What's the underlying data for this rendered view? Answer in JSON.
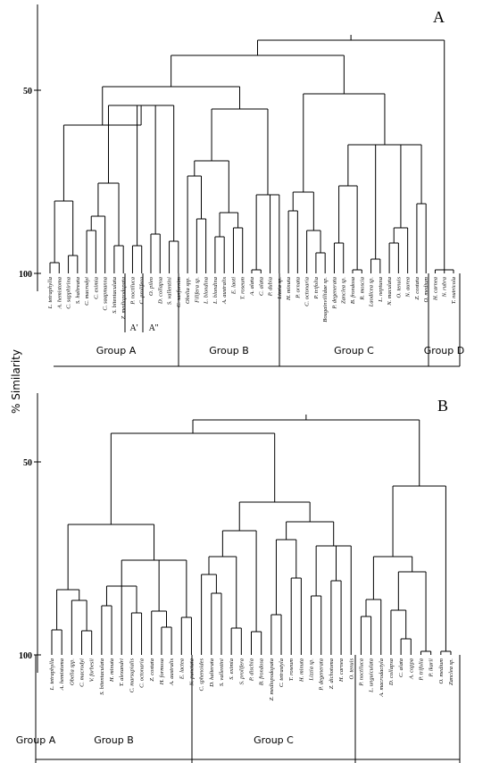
{
  "y_axis_label": "% Similarity",
  "panels": [
    {
      "label": "A",
      "yticks": [
        "50",
        "100"
      ],
      "subgroups": [
        "A'",
        "A''"
      ],
      "leaves": [
        "L. tetraphylla",
        "A. hemistoma",
        "C. sapphirina",
        "S. haltreata",
        "C. macrodyi",
        "C. eximia",
        "C. saapmanna",
        "S. bitentaculata",
        "Z. mediopodopata",
        "P. noctiluca",
        "C. prolifera",
        "O. pileo",
        "D. collapsa",
        "S. vallentini",
        "C. sanfornim",
        "Obelia spp.",
        "Filifera sp.",
        "L. blondina",
        "L. blondina",
        "A. australis",
        "E. laoti",
        "T. roseum",
        "A. alata",
        "C. alata",
        "P. dubia",
        "Lizzia sp.",
        "H. minuta",
        "P. ornata",
        "C. octonaria",
        "P. trifolia",
        "Bougainvillidae sp.",
        "P. degenerata",
        "Zanclea sp.",
        "B. frondosa",
        "R. moscia",
        "Laodicea sp.",
        "L. neptuna",
        "N. maculata",
        "O. tenuis",
        "N. aurea",
        "Z. costata",
        "O. medium",
        "H. carnea",
        "N. rubra",
        "T. nutricola"
      ],
      "groups": [
        "Group A",
        "Group B",
        "Group C",
        "Group D"
      ]
    },
    {
      "label": "B",
      "yticks": [
        "50",
        "100"
      ],
      "leaves": [
        "L. tetraphylla",
        "A. hemistoma",
        "Obelia spp.",
        "C. macrodyi",
        "V. forbesii",
        "S. bitentaculata",
        "H. minuta",
        "T. alexandri",
        "C. marsupialis",
        "C. octonaria",
        "Z. costata",
        "H. formosa",
        "A. australis",
        "E. lactea",
        "N. punctata",
        "C. sphenoides",
        "D. halterata",
        "S. vallentini",
        "S. eximia",
        "S. prolifera",
        "P. dischia",
        "B. frondosa",
        "Z. mediopodopata",
        "C. tetrastyla",
        "T. roseum",
        "H. minuta",
        "Lizzia sp.",
        "P. degenerata",
        "Z. dichotoma",
        "H. carnea",
        "O. tenuis",
        "P. noctiluca",
        "L. unguiculata",
        "A. macrodactyla",
        "D. collapsa",
        "C. alata",
        "A. coppa",
        "P. trifolia",
        "P. ikarii",
        "O. medium",
        "Zanclea sp."
      ],
      "groups": [
        "Group A",
        "Group B",
        "Group C"
      ]
    }
  ]
}
